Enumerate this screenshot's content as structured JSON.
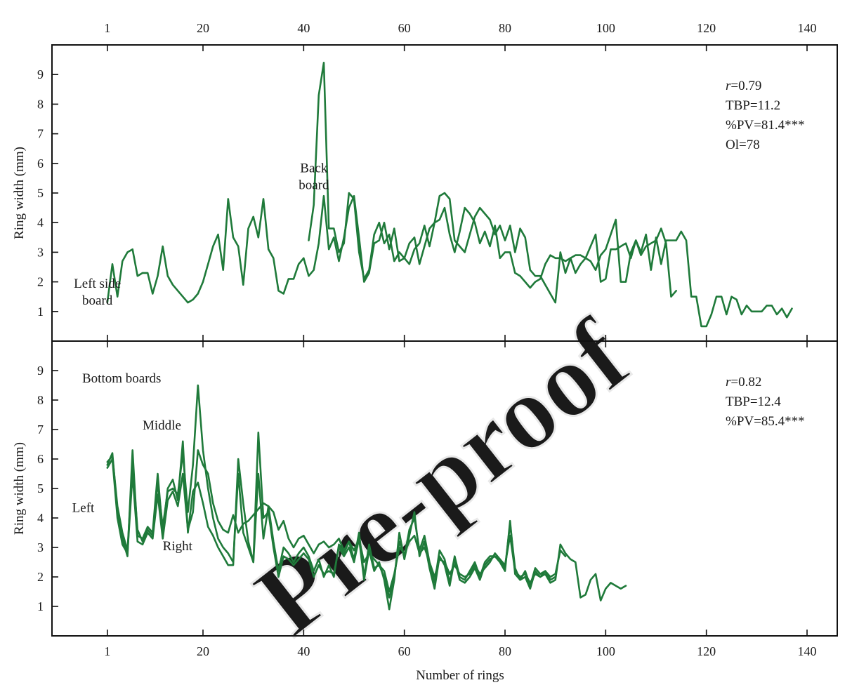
{
  "watermark": "Pre-proof",
  "chart_data": [
    {
      "type": "line",
      "panel": "top",
      "xlabel": "",
      "ylabel": "Ring width (mm)",
      "xlim": [
        -10,
        146
      ],
      "ylim": [
        0,
        10
      ],
      "x_ticks": [
        1,
        20,
        40,
        60,
        80,
        100,
        120,
        140
      ],
      "x_tick_labels": [
        "1",
        "20",
        "40",
        "60",
        "80",
        "100",
        "120",
        "140"
      ],
      "x_tick_labels_position": "top",
      "y_ticks": [
        1,
        2,
        3,
        4,
        5,
        6,
        7,
        8,
        9
      ],
      "y_tick_labels": [
        "1",
        "2",
        "3",
        "4",
        "5",
        "6",
        "7",
        "8",
        "9"
      ],
      "grid": false,
      "line_color": "#1f7a3a",
      "annotations": [
        {
          "text": "Left side board",
          "lines": [
            "Left side",
            "board"
          ],
          "x": -6,
          "y": 1.8
        },
        {
          "text": "Back board",
          "lines": [
            "Back",
            "board"
          ],
          "x": 37,
          "y": 5.7
        }
      ],
      "stats": [
        "r=0.79",
        "TBP=11.2",
        "%PV=81.4***",
        "Ol=78"
      ],
      "stats_position": "top-right",
      "series": [
        {
          "label": "Left side board",
          "x_start": 1,
          "values": [
            1.3,
            2.6,
            1.5,
            2.7,
            3.0,
            3.1,
            2.2,
            2.3,
            2.3,
            1.6,
            2.2,
            3.2,
            2.2,
            1.9,
            1.7,
            1.5,
            1.3,
            1.4,
            1.6,
            2.0,
            2.6,
            3.2,
            3.6,
            2.4,
            4.8,
            3.5,
            3.2,
            1.9,
            3.8,
            4.2,
            3.5,
            4.8,
            3.1,
            2.8,
            1.7,
            1.6,
            2.1,
            2.1,
            2.6,
            2.8,
            2.2,
            2.4,
            3.3,
            4.9,
            3.1,
            3.5,
            2.7,
            3.5,
            4.5,
            4.9,
            3.5,
            2.0,
            2.3,
            3.3,
            3.4,
            4.0,
            3.1,
            3.8,
            2.7,
            2.8,
            2.6,
            3.1,
            3.3,
            3.9,
            3.2,
            4.0,
            4.9,
            5.0,
            4.8,
            3.4,
            3.2,
            3.0,
            3.6,
            4.2,
            4.5,
            4.3,
            4.1,
            3.6,
            3.9,
            3.4,
            3.9,
            3.0,
            3.8,
            3.5,
            2.4,
            2.2,
            2.2,
            1.9,
            1.6,
            1.3,
            3.0,
            2.3,
            2.8,
            2.9,
            2.9,
            2.8,
            2.7,
            2.4,
            2.9,
            3.1,
            3.6,
            4.1,
            2.0,
            2.0,
            3.0,
            3.4,
            3.0,
            3.6,
            2.4,
            3.5,
            2.6,
            3.4,
            3.4,
            3.4,
            3.7,
            3.4,
            1.5,
            1.5,
            0.5,
            0.5,
            0.9,
            1.5,
            1.5,
            0.9,
            1.5,
            1.4,
            0.9,
            1.2,
            1.0,
            1.0,
            1.0,
            1.2,
            1.2,
            0.9,
            1.1,
            0.8,
            1.1
          ]
        },
        {
          "label": "Back board",
          "x_start": 41,
          "values": [
            3.4,
            4.6,
            8.3,
            9.4,
            3.8,
            3.8,
            3.0,
            3.3,
            5.0,
            4.8,
            3.0,
            2.1,
            2.4,
            3.6,
            4.0,
            3.3,
            3.6,
            2.7,
            3.0,
            2.8,
            3.3,
            3.5,
            2.6,
            3.2,
            3.8,
            4.0,
            4.1,
            4.5,
            3.6,
            3.0,
            3.7,
            4.5,
            4.3,
            4.0,
            3.3,
            3.7,
            3.2,
            3.9,
            2.8,
            3.0,
            3.0,
            2.3,
            2.2,
            2.0,
            1.8,
            2.0,
            2.1,
            2.6,
            2.9,
            2.8,
            2.8,
            2.7,
            2.8,
            2.3,
            2.6,
            2.8,
            3.2,
            3.6,
            2.0,
            2.1,
            3.1,
            3.1,
            3.2,
            3.3,
            2.8,
            3.4,
            2.9,
            3.2,
            3.3,
            3.4,
            3.8,
            3.3,
            1.5,
            1.7
          ]
        }
      ]
    },
    {
      "type": "line",
      "panel": "bottom",
      "xlabel": "Number of rings",
      "ylabel": "Ring width (mm)",
      "xlim": [
        -10,
        146
      ],
      "ylim": [
        0,
        10
      ],
      "x_ticks": [
        1,
        20,
        40,
        60,
        80,
        100,
        120,
        140
      ],
      "x_tick_labels": [
        "1",
        "20",
        "40",
        "60",
        "80",
        "100",
        "120",
        "140"
      ],
      "y_ticks": [
        1,
        2,
        3,
        4,
        5,
        6,
        7,
        8,
        9
      ],
      "y_tick_labels": [
        "1",
        "2",
        "3",
        "4",
        "5",
        "6",
        "7",
        "8",
        "9"
      ],
      "grid": false,
      "line_color": "#1f7a3a",
      "annotations": [
        {
          "text": "Bottom boards",
          "x": -4,
          "y": 8.6
        },
        {
          "text": "Middle",
          "x": 8,
          "y": 7.0
        },
        {
          "text": "Left",
          "x": -6,
          "y": 4.2
        },
        {
          "text": "Right",
          "x": 12,
          "y": 2.9
        }
      ],
      "stats": [
        "r=0.82",
        "TBP=12.4",
        "%PV=85.4***"
      ],
      "stats_position": "top-right",
      "series": [
        {
          "label": "Left",
          "x_start": 1,
          "values": [
            5.8,
            6.2,
            4.2,
            3.3,
            2.7,
            6.3,
            3.4,
            3.3,
            3.7,
            3.5,
            5.5,
            3.5,
            5.0,
            5.3,
            4.6,
            6.6,
            3.5,
            4.9,
            5.2,
            4.5,
            3.7,
            3.4,
            3.0,
            2.7,
            2.4,
            2.4,
            6.0,
            4.5,
            3.2,
            2.5,
            5.5,
            3.3,
            4.4,
            3.2,
            2.2,
            3.0,
            2.8,
            2.5,
            2.8,
            3.0,
            2.7,
            2.2,
            2.6,
            2.0,
            2.4,
            2.0,
            3.1,
            2.8,
            3.2,
            2.6,
            3.5,
            2.0,
            3.1,
            2.3,
            2.4,
            2.0,
            1.3,
            2.0,
            3.2,
            2.7,
            3.6,
            4.0,
            2.9,
            3.4,
            2.5,
            1.8,
            2.9,
            2.6,
            1.8,
            2.7,
            2.0,
            1.9,
            2.2,
            2.5,
            2.0,
            2.5,
            2.7,
            2.7,
            2.6,
            2.3,
            3.8,
            2.3,
            1.9,
            2.2,
            1.7,
            2.3,
            2.1,
            2.2,
            1.9,
            2.0
          ]
        },
        {
          "label": "Middle",
          "x_start": 1,
          "values": [
            5.9,
            6.1,
            4.4,
            3.5,
            2.9,
            5.8,
            3.6,
            3.2,
            3.6,
            3.4,
            5.2,
            3.7,
            4.9,
            5.0,
            4.8,
            6.2,
            4.2,
            5.8,
            8.5,
            6.3,
            5.0,
            4.0,
            3.3,
            3.0,
            2.8,
            2.5,
            5.5,
            3.5,
            3.0,
            2.5,
            6.9,
            4.0,
            4.2,
            3.0,
            2.0,
            2.7,
            2.6,
            2.4,
            2.6,
            2.8,
            2.6,
            2.0,
            2.4,
            2.1,
            2.2,
            2.1,
            3.0,
            2.7,
            3.0,
            2.5,
            3.3,
            1.9,
            2.9,
            2.2,
            2.5,
            1.9,
            0.9,
            1.9,
            3.5,
            2.6,
            3.4,
            4.2,
            2.7,
            3.2,
            2.3,
            1.6,
            2.7,
            2.4,
            1.7,
            2.6,
            1.9,
            1.8,
            2.0,
            2.3,
            1.9,
            2.4,
            2.6,
            2.7,
            2.5,
            2.2,
            3.9,
            2.1,
            1.9,
            2.0,
            1.6,
            2.2,
            2.0,
            2.1,
            1.8,
            1.9,
            3.1,
            2.8,
            2.6,
            2.5,
            1.3,
            1.4,
            1.9,
            2.1,
            1.2,
            1.6,
            1.8,
            1.7,
            1.6,
            1.7
          ]
        },
        {
          "label": "Right",
          "x_start": 1,
          "values": [
            5.7,
            6.0,
            4.0,
            3.1,
            2.8,
            5.5,
            3.2,
            3.1,
            3.5,
            3.3,
            4.8,
            3.3,
            4.6,
            4.9,
            4.4,
            5.5,
            3.6,
            4.2,
            6.3,
            5.8,
            5.5,
            4.5,
            3.9,
            3.6,
            3.5,
            4.1,
            3.5,
            3.8,
            3.9,
            4.1,
            4.3,
            4.5,
            4.4,
            4.2,
            3.6,
            3.9,
            3.3,
            3.0,
            3.3,
            3.4,
            3.1,
            2.8,
            3.1,
            3.2,
            3.0,
            3.1,
            3.3,
            2.9,
            3.2,
            2.9,
            3.3,
            2.5,
            2.8,
            2.6,
            2.4,
            2.2,
            1.5,
            2.1,
            3.0,
            2.8,
            3.2,
            3.4,
            2.8,
            3.0,
            2.5,
            2.0,
            2.6,
            2.5,
            2.1,
            2.4,
            2.1,
            2.0,
            2.1,
            2.4,
            2.1,
            2.3,
            2.5,
            2.8,
            2.6,
            2.4,
            3.4,
            2.2,
            2.0,
            2.1,
            1.8,
            2.1,
            2.0,
            2.2,
            2.0,
            2.1,
            2.9,
            2.7
          ]
        }
      ]
    }
  ]
}
